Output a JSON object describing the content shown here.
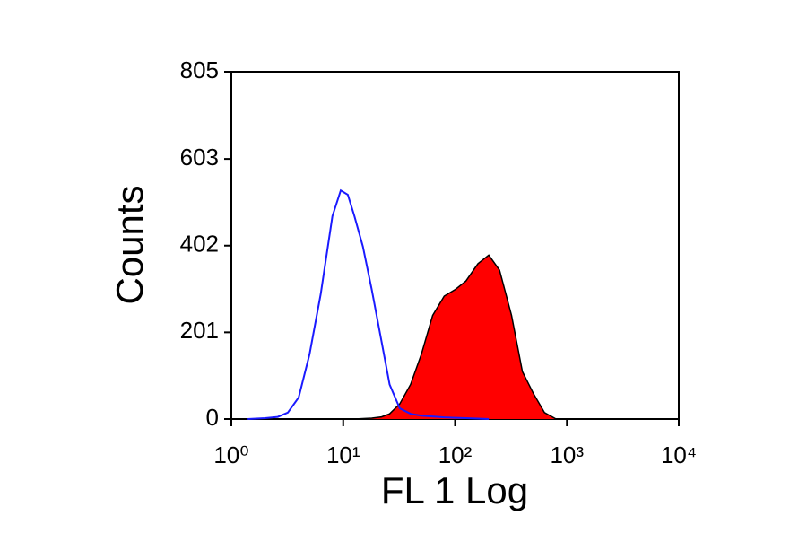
{
  "chart_data": {
    "type": "histogram-overlay",
    "xlabel": "FL 1 Log",
    "ylabel": "Counts",
    "xscale": "log",
    "xlim": [
      1,
      10000
    ],
    "xticks": [
      {
        "value": 1,
        "label": "10⁰"
      },
      {
        "value": 10,
        "label": "10¹"
      },
      {
        "value": 100,
        "label": "10²"
      },
      {
        "value": 1000,
        "label": "10³"
      },
      {
        "value": 10000,
        "label": "10⁴"
      }
    ],
    "ylim": [
      0,
      805
    ],
    "yticks": [
      0,
      201,
      402,
      603,
      805
    ],
    "x": [
      1.4,
      2,
      2.6,
      3.2,
      4,
      5,
      6.3,
      8,
      9.5,
      11,
      12.6,
      15,
      18,
      22,
      26,
      32,
      40,
      50,
      63,
      80,
      100,
      125,
      160,
      200,
      250,
      320,
      400,
      500,
      630,
      800,
      1000
    ],
    "series": [
      {
        "color": "#1a1aff",
        "filled": false,
        "values": [
          0,
          2,
          5,
          15,
          50,
          150,
          290,
          470,
          530,
          520,
          470,
          400,
          300,
          180,
          80,
          25,
          12,
          8,
          6,
          4,
          3,
          2,
          1,
          0,
          null,
          null,
          null,
          null,
          null,
          null,
          null
        ]
      },
      {
        "color": "#ff0000",
        "filled": true,
        "values": [
          null,
          null,
          null,
          null,
          null,
          null,
          null,
          null,
          null,
          null,
          0,
          1,
          2,
          5,
          12,
          35,
          80,
          150,
          240,
          285,
          300,
          320,
          360,
          380,
          345,
          240,
          110,
          60,
          15,
          0,
          null
        ]
      }
    ]
  }
}
